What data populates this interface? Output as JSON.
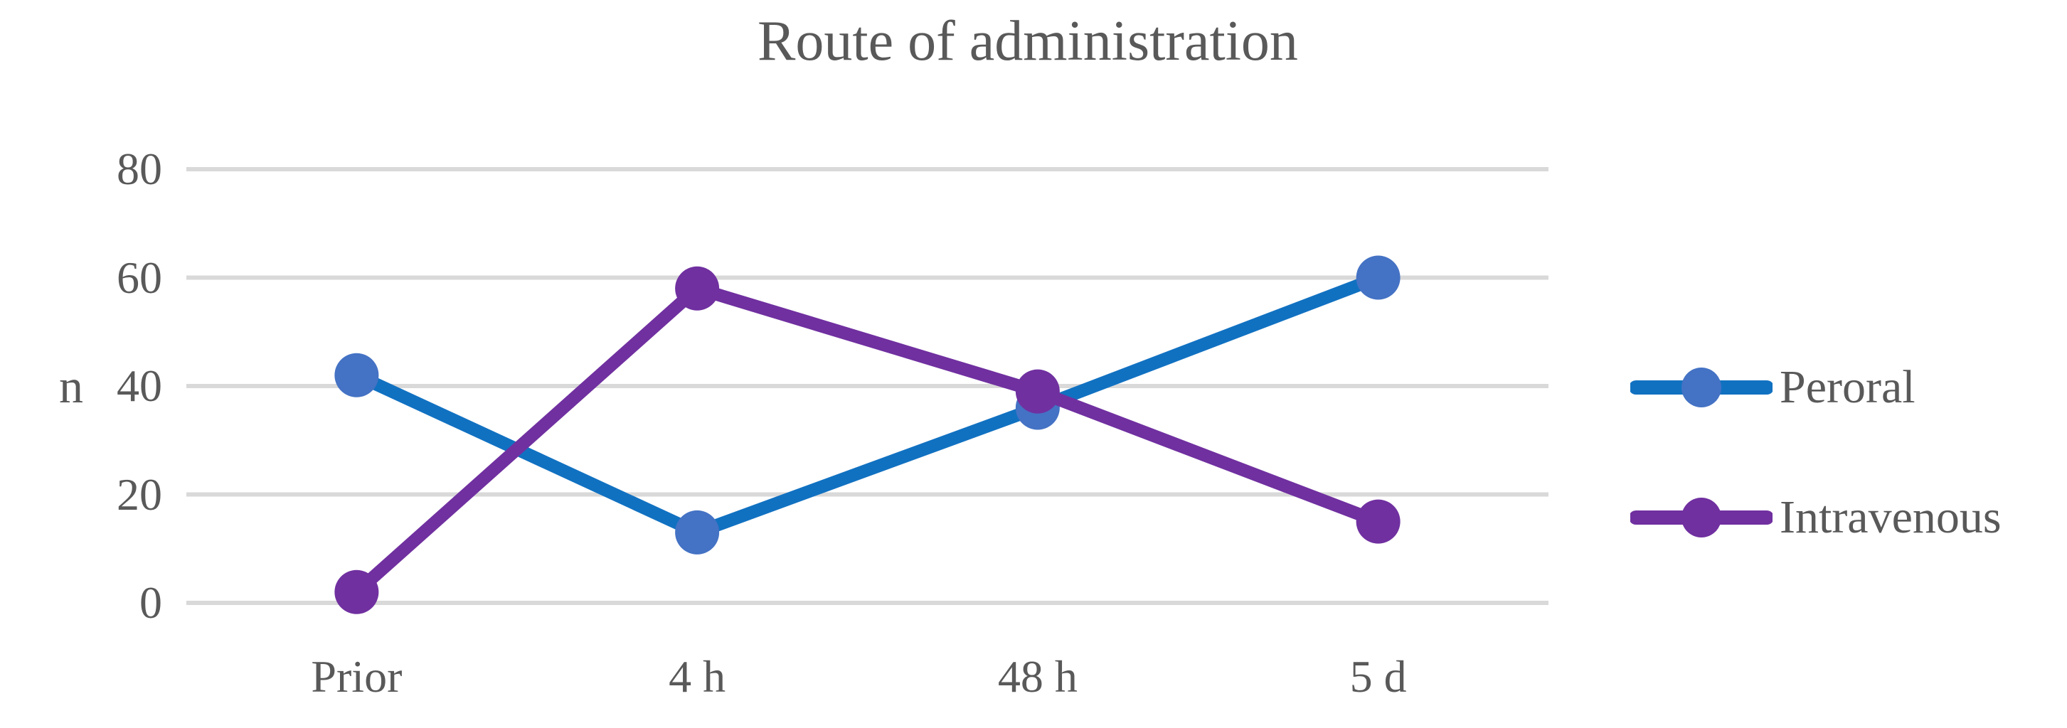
{
  "chart_data": {
    "type": "line",
    "title": "Route of administration",
    "ylabel": "n",
    "categories": [
      "Prior",
      "4 h",
      "48 h",
      "5 d"
    ],
    "series": [
      {
        "name": "Peroral",
        "values": [
          42,
          13,
          36,
          60
        ],
        "line_color": "#1171C1",
        "marker_color": "#4472C4"
      },
      {
        "name": "Intravenous",
        "values": [
          2,
          58,
          39,
          15
        ],
        "line_color": "#7030A0",
        "marker_color": "#7030A0"
      }
    ],
    "ylim": [
      0,
      80
    ],
    "yticks": [
      0,
      20,
      40,
      60,
      80
    ],
    "grid": "horizontal",
    "gridline_color": "#D9D9D9",
    "text_color": "#595959",
    "legend_position": "right"
  }
}
